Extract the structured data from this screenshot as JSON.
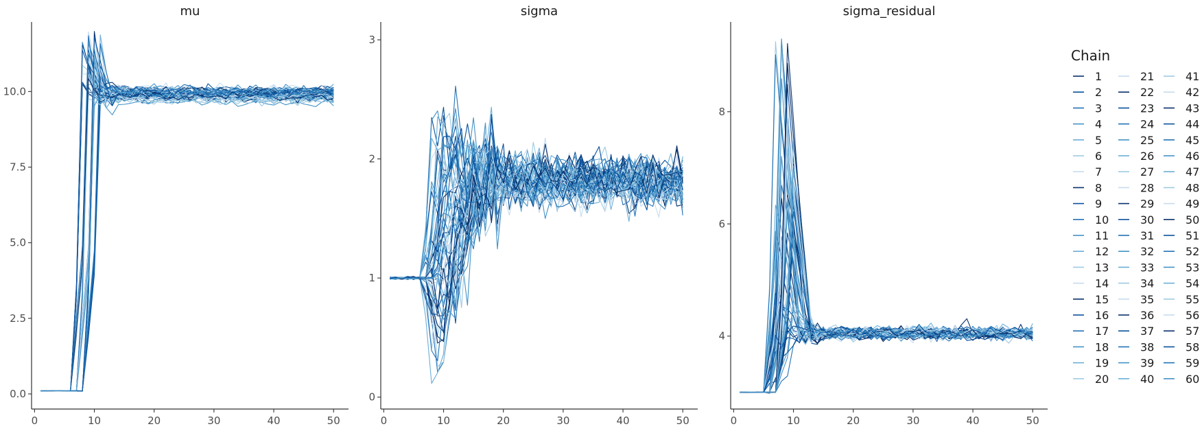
{
  "chart_data": {
    "type": "line",
    "x_range": [
      1,
      50
    ],
    "legend": {
      "title": "Chain",
      "placement": "right",
      "entries": [
        "1",
        "2",
        "3",
        "4",
        "5",
        "6",
        "7",
        "8",
        "9",
        "10",
        "11",
        "12",
        "13",
        "14",
        "15",
        "16",
        "17",
        "18",
        "19",
        "20",
        "21",
        "22",
        "23",
        "24",
        "25",
        "26",
        "27",
        "28",
        "29",
        "30",
        "31",
        "32",
        "33",
        "34",
        "35",
        "36",
        "37",
        "38",
        "39",
        "40",
        "41",
        "42",
        "43",
        "44",
        "45",
        "46",
        "47",
        "48",
        "49",
        "50",
        "51",
        "52",
        "53",
        "54",
        "55",
        "56",
        "57",
        "58",
        "59",
        "60"
      ]
    },
    "palette": [
      "#08306b",
      "#08519c",
      "#2171b5",
      "#4292c6",
      "#6baed6",
      "#9ecae1",
      "#c6dbef"
    ],
    "panels": [
      {
        "title": "mu",
        "x_ticks": [
          0,
          10,
          20,
          30,
          40,
          50
        ],
        "x_tick_labels": [
          "0",
          "10",
          "20",
          "30",
          "40",
          "50"
        ],
        "y_ticks": [
          0.0,
          2.5,
          5.0,
          7.5,
          10.0
        ],
        "y_tick_labels": [
          "0.0",
          "2.5",
          "5.0",
          "7.5",
          "10.0"
        ],
        "xlim": [
          -0.5,
          52.5
        ],
        "ylim": [
          -0.5,
          12.3
        ],
        "profile": {
          "init": 0.1,
          "init_until": 6,
          "jump_start": 7,
          "jump_end": 11,
          "jump_peak": 12.0,
          "settle": 9.9,
          "settle_spread": 0.35,
          "noise": 0.08,
          "spike_range": [
            9.5,
            12.0
          ]
        }
      },
      {
        "title": "sigma",
        "x_ticks": [
          0,
          10,
          20,
          30,
          40,
          50
        ],
        "x_tick_labels": [
          "0",
          "10",
          "20",
          "30",
          "40",
          "50"
        ],
        "y_ticks": [
          0,
          1,
          2,
          3
        ],
        "y_tick_labels": [
          "0",
          "1",
          "2",
          "3"
        ],
        "xlim": [
          -0.5,
          52.5
        ],
        "ylim": [
          -0.1,
          3.15
        ],
        "profile": {
          "init": 1.0,
          "init_until": 6,
          "jump_start": 7,
          "jump_end": 18,
          "jump_peak": 3.0,
          "settle": 1.8,
          "settle_spread": 0.1,
          "noise": 0.1,
          "spike_range": [
            0.05,
            2.4
          ]
        }
      },
      {
        "title": "sigma_residual",
        "x_ticks": [
          0,
          10,
          20,
          30,
          40,
          50
        ],
        "x_tick_labels": [
          "0",
          "10",
          "20",
          "30",
          "40",
          "50"
        ],
        "y_ticks": [
          4,
          6,
          8
        ],
        "y_tick_labels": [
          "4",
          "6",
          "8"
        ],
        "xlim": [
          -0.5,
          52.5
        ],
        "ylim": [
          2.7,
          9.6
        ],
        "profile": {
          "init": 3.0,
          "init_until": 5,
          "jump_start": 6,
          "jump_end": 12,
          "jump_peak": 9.3,
          "settle": 4.05,
          "settle_spread": 0.06,
          "noise": 0.05,
          "spike_range": [
            3.5,
            9.3
          ]
        }
      }
    ]
  }
}
